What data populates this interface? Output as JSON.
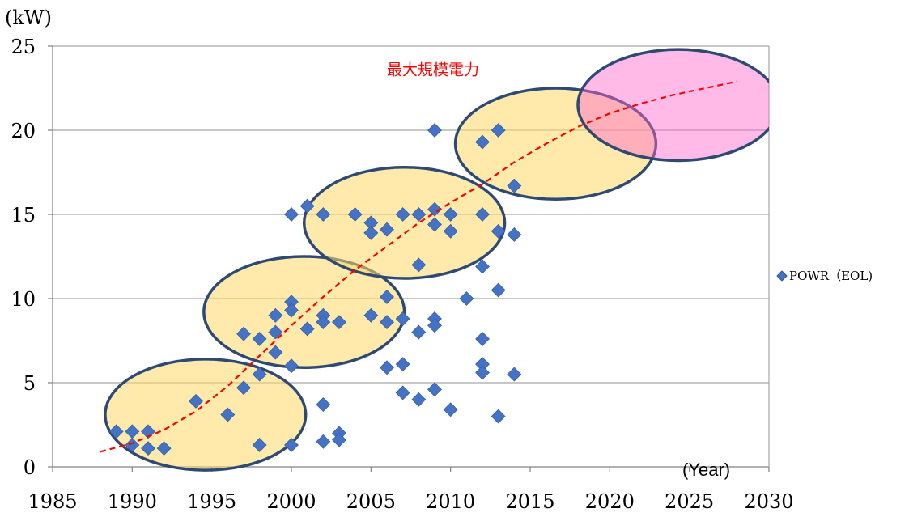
{
  "chart_data": {
    "type": "scatter",
    "y_unit_label": "(kW)",
    "x_unit_label": "(Year)",
    "xlim": [
      1985,
      2030
    ],
    "ylim": [
      0,
      25
    ],
    "x_ticks": [
      1985,
      1990,
      1995,
      2000,
      2005,
      2010,
      2015,
      2020,
      2025,
      2030
    ],
    "y_ticks": [
      0,
      5,
      10,
      15,
      20,
      25
    ],
    "grid": "horizontal",
    "legend_position": "right",
    "colors": {
      "marker": "#4472C4",
      "marker_edge": "#2F5597",
      "trend": "#FF0000",
      "ellipse_fill": "#FFD966",
      "ellipse_edge": "#2E4A74",
      "ellipse_pink_fill": "#FF66CC",
      "annotation": "#FF0000",
      "grid": "#A6A6A6",
      "axis": "#808080"
    },
    "series": [
      {
        "name": "POWR（EOL)",
        "marker": "diamond",
        "points": [
          [
            1989,
            2.1
          ],
          [
            1990,
            2.1
          ],
          [
            1990,
            1.3
          ],
          [
            1991,
            2.1
          ],
          [
            1991,
            1.1
          ],
          [
            1992,
            1.1
          ],
          [
            1994,
            3.9
          ],
          [
            1996,
            3.1
          ],
          [
            1997,
            7.9
          ],
          [
            1997,
            4.7
          ],
          [
            1998,
            7.6
          ],
          [
            1998,
            5.5
          ],
          [
            1998,
            1.3
          ],
          [
            1999,
            9.0
          ],
          [
            1999,
            8.0
          ],
          [
            1999,
            6.8
          ],
          [
            2000,
            9.8
          ],
          [
            2000,
            9.3
          ],
          [
            2000,
            6.0
          ],
          [
            2000,
            1.3
          ],
          [
            2000,
            15.0
          ],
          [
            2001,
            15.5
          ],
          [
            2001,
            8.2
          ],
          [
            2002,
            15.0
          ],
          [
            2002,
            9.0
          ],
          [
            2002,
            8.6
          ],
          [
            2002,
            3.7
          ],
          [
            2002,
            1.5
          ],
          [
            2003,
            8.6
          ],
          [
            2003,
            2.0
          ],
          [
            2003,
            1.6
          ],
          [
            2004,
            15.0
          ],
          [
            2005,
            14.5
          ],
          [
            2005,
            13.9
          ],
          [
            2005,
            9.0
          ],
          [
            2006,
            14.1
          ],
          [
            2006,
            10.1
          ],
          [
            2006,
            8.6
          ],
          [
            2006,
            5.9
          ],
          [
            2007,
            15.0
          ],
          [
            2007,
            8.8
          ],
          [
            2007,
            6.1
          ],
          [
            2007,
            4.4
          ],
          [
            2008,
            15.0
          ],
          [
            2008,
            12.0
          ],
          [
            2008,
            8.0
          ],
          [
            2008,
            4.0
          ],
          [
            2009,
            20.0
          ],
          [
            2009,
            15.3
          ],
          [
            2009,
            14.4
          ],
          [
            2009,
            8.8
          ],
          [
            2009,
            8.4
          ],
          [
            2009,
            4.6
          ],
          [
            2010,
            15.0
          ],
          [
            2010,
            14.0
          ],
          [
            2010,
            3.4
          ],
          [
            2011,
            10.0
          ],
          [
            2012,
            19.3
          ],
          [
            2012,
            15.0
          ],
          [
            2012,
            11.9
          ],
          [
            2012,
            7.6
          ],
          [
            2012,
            6.1
          ],
          [
            2012,
            5.6
          ],
          [
            2013,
            20.0
          ],
          [
            2013,
            14.0
          ],
          [
            2013,
            10.5
          ],
          [
            2013,
            3.0
          ],
          [
            2014,
            16.7
          ],
          [
            2014,
            13.8
          ],
          [
            2014,
            5.5
          ]
        ]
      }
    ],
    "trend_line": {
      "style": "dashed",
      "points": [
        [
          1988,
          0.9
        ],
        [
          1990,
          1.4
        ],
        [
          1992,
          2.2
        ],
        [
          1994,
          3.3
        ],
        [
          1996,
          4.8
        ],
        [
          1998,
          6.6
        ],
        [
          2000,
          8.4
        ],
        [
          2002,
          10.1
        ],
        [
          2004,
          11.7
        ],
        [
          2006,
          13.1
        ],
        [
          2008,
          14.5
        ],
        [
          2010,
          15.7
        ],
        [
          2012,
          16.8
        ],
        [
          2014,
          18.1
        ],
        [
          2016,
          19.2
        ],
        [
          2018,
          20.2
        ],
        [
          2020,
          21.0
        ],
        [
          2022,
          21.6
        ],
        [
          2024,
          22.1
        ],
        [
          2026,
          22.5
        ],
        [
          2028,
          22.9
        ]
      ]
    },
    "ellipses": [
      {
        "cx": 1994.6,
        "cy": 3.1,
        "rx": 6.3,
        "ry": 3.3,
        "color": "yellow"
      },
      {
        "cx": 2000.8,
        "cy": 9.2,
        "rx": 6.3,
        "ry": 3.3,
        "color": "yellow"
      },
      {
        "cx": 2007.1,
        "cy": 14.5,
        "rx": 6.3,
        "ry": 3.3,
        "color": "yellow"
      },
      {
        "cx": 2016.6,
        "cy": 19.2,
        "rx": 6.3,
        "ry": 3.3,
        "color": "yellow"
      },
      {
        "cx": 2024.3,
        "cy": 21.5,
        "rx": 6.3,
        "ry": 3.3,
        "color": "pink"
      }
    ],
    "annotations": [
      {
        "text": "最大規模電力",
        "x": 2006.0,
        "y": 23.3
      }
    ]
  }
}
